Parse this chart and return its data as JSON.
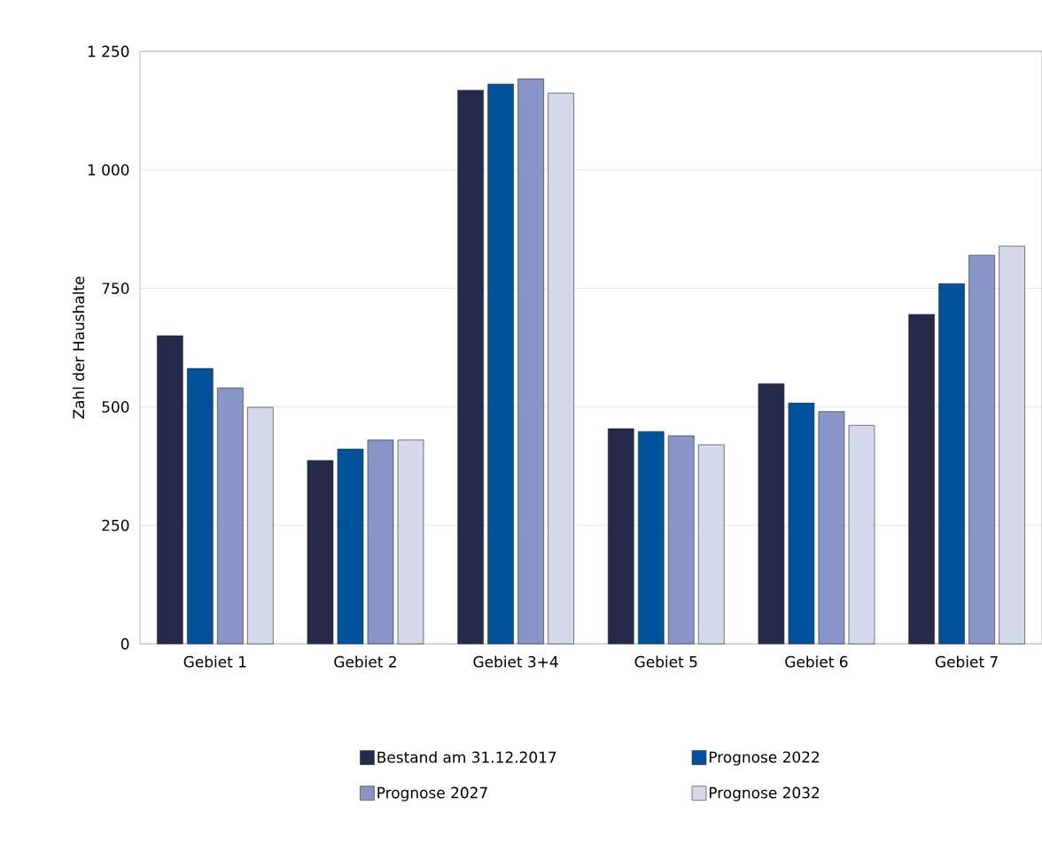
{
  "chart_data": {
    "type": "bar",
    "ylabel": "Zahl der Haushalte",
    "categories": [
      "Gebiet 1",
      "Gebiet 2",
      "Gebiet 3+4",
      "Gebiet 5",
      "Gebiet 6",
      "Gebiet 7"
    ],
    "series": [
      {
        "name": "Bestand am 31.12.2017",
        "color": "#252a4a",
        "values": [
          650,
          387,
          1168,
          454,
          549,
          695
        ]
      },
      {
        "name": "Prognose 2022",
        "color": "#00529b",
        "values": [
          581,
          411,
          1181,
          448,
          508,
          760
        ]
      },
      {
        "name": "Prognose 2027",
        "color": "#8895c8",
        "values": [
          540,
          430,
          1192,
          439,
          490,
          820
        ]
      },
      {
        "name": "Prognose 2032",
        "color": "#d4d9ec",
        "values": [
          499,
          430,
          1162,
          420,
          461,
          839
        ]
      }
    ],
    "ylim": [
      0,
      1250
    ],
    "yticks": [
      0,
      250,
      500,
      750,
      {
        "value": 1000,
        "label": "1 000"
      },
      {
        "value": 1250,
        "label": "1 250"
      }
    ],
    "grid": "y",
    "legend": "bottom"
  }
}
